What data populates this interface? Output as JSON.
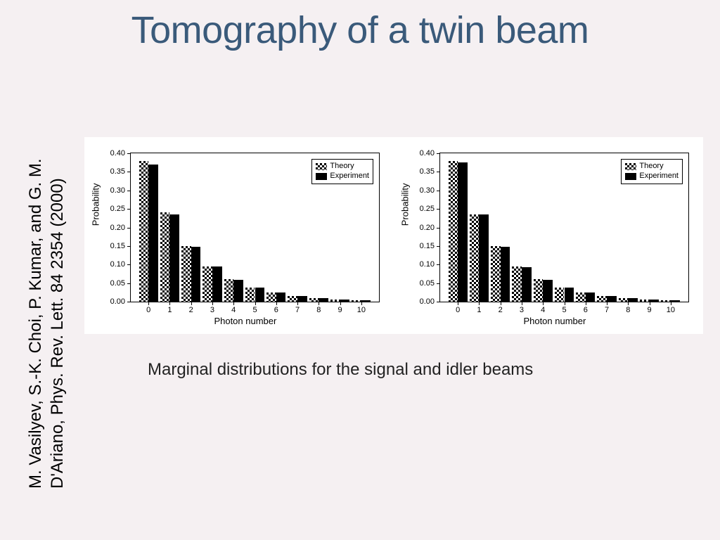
{
  "title": "Tomography of a twin beam",
  "citation_line1": "M. Vasilyev, S.-K. Choi, P. Kumar, and G. M.",
  "citation_line2": "D'Ariano, Phys. Rev. Lett. 84 2354 (2000)",
  "caption": "Marginal distributions for the signal and idler beams",
  "legend": {
    "theory": "Theory",
    "experiment": "Experiment"
  },
  "axis_labels": {
    "y": "Probability",
    "x": "Photon number"
  },
  "colors": {
    "title": "#3a5a7a",
    "background": "#f5f0f2",
    "chart_bg": "#ffffff",
    "axis": "#000000",
    "bar_experiment": "#000000",
    "bar_theory_pattern_fg": "#ffffff",
    "bar_theory_pattern_bg": "#000000"
  },
  "title_fontsize": 54,
  "citation_fontsize": 24,
  "caption_fontsize": 24,
  "tick_fontsize": 11,
  "axis_label_fontsize": 13,
  "chart_left": {
    "type": "bar-grouped",
    "ylim": [
      0,
      0.4
    ],
    "ytick_step": 0.05,
    "xlim": [
      0,
      10
    ],
    "bar_width": 0.45,
    "categories": [
      0,
      1,
      2,
      3,
      4,
      5,
      6,
      7,
      8,
      9,
      10
    ],
    "theory": [
      0.38,
      0.24,
      0.15,
      0.095,
      0.06,
      0.038,
      0.025,
      0.016,
      0.01,
      0.006,
      0.004
    ],
    "experiment": [
      0.37,
      0.235,
      0.148,
      0.095,
      0.059,
      0.038,
      0.024,
      0.015,
      0.01,
      0.006,
      0.004
    ]
  },
  "chart_right": {
    "type": "bar-grouped",
    "ylim": [
      0,
      0.4
    ],
    "ytick_step": 0.05,
    "xlim": [
      0,
      10
    ],
    "bar_width": 0.45,
    "categories": [
      0,
      1,
      2,
      3,
      4,
      5,
      6,
      7,
      8,
      9,
      10
    ],
    "theory": [
      0.38,
      0.235,
      0.15,
      0.095,
      0.06,
      0.038,
      0.025,
      0.016,
      0.01,
      0.006,
      0.004
    ],
    "experiment": [
      0.375,
      0.235,
      0.148,
      0.092,
      0.058,
      0.037,
      0.024,
      0.015,
      0.01,
      0.006,
      0.004
    ]
  }
}
